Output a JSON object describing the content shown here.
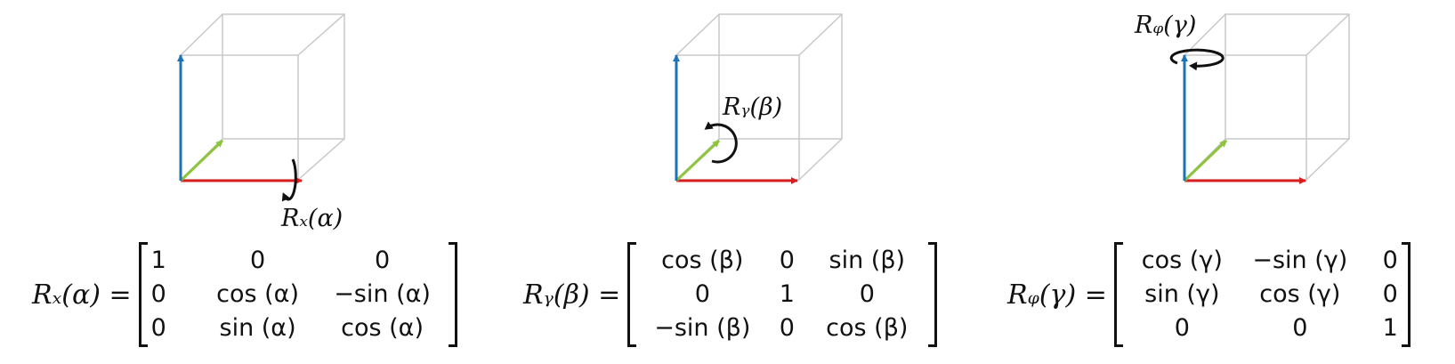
{
  "colors": {
    "x_axis": "#d81f1f",
    "y_axis": "#8cc43c",
    "z_axis": "#1d73b5",
    "cube_edge": "#c8c8c8",
    "text": "#111111"
  },
  "icons": [
    "rotation-arrow-icon"
  ],
  "panels": [
    {
      "id": "x",
      "rotation_label": "Rₓ(α)",
      "equation_lhs": "Rₓ(α) =",
      "matrix": [
        [
          "1",
          "0",
          "0"
        ],
        [
          "0",
          "cos (α)",
          "−sin (α)"
        ],
        [
          "0",
          "sin (α)",
          "cos (α)"
        ]
      ]
    },
    {
      "id": "y",
      "rotation_label": "Rᵧ(β)",
      "equation_lhs": "Rᵧ(β) =",
      "matrix": [
        [
          "cos (β)",
          "0",
          "sin (β)"
        ],
        [
          "0",
          "1",
          "0"
        ],
        [
          "−sin (β)",
          "0",
          "cos (β)"
        ]
      ]
    },
    {
      "id": "z",
      "rotation_label": "Rᵩ(γ)",
      "equation_lhs": "Rᵩ(γ) =",
      "matrix": [
        [
          "cos (γ)",
          "−sin (γ)",
          "0"
        ],
        [
          "sin (γ)",
          "cos (γ)",
          "0"
        ],
        [
          "0",
          "0",
          "1"
        ]
      ]
    }
  ]
}
